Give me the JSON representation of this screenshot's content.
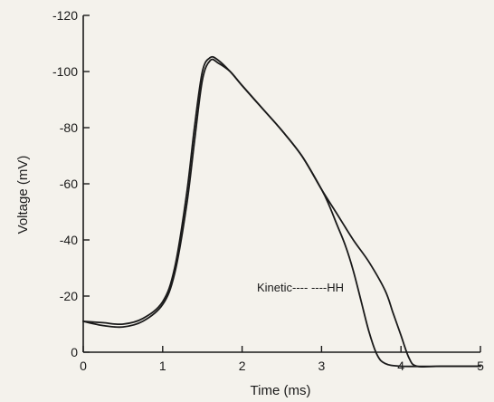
{
  "chart_data": {
    "type": "line",
    "xlabel": "Time (ms)",
    "ylabel": "Voltage (mV)",
    "xlim": [
      0,
      5
    ],
    "ylim": [
      -120,
      0
    ],
    "y_axis_inverted": true,
    "grid": false,
    "x_ticks": [
      0,
      1,
      2,
      3,
      4,
      5
    ],
    "x_tick_labels": [
      "0",
      "1",
      "2",
      "3",
      "4",
      "5"
    ],
    "y_ticks": [
      0,
      -20,
      -40,
      -60,
      -80,
      -100,
      -120
    ],
    "y_tick_labels": [
      "0",
      "-20",
      "-40",
      "-60",
      "-80",
      "-100",
      "-120"
    ],
    "series": [
      {
        "name": "Kinetic",
        "x": [
          0,
          0.25,
          0.5,
          0.75,
          1.0,
          1.15,
          1.3,
          1.4,
          1.5,
          1.6,
          1.7,
          1.85,
          2.0,
          2.25,
          2.5,
          2.75,
          3.0,
          3.1,
          3.2,
          3.3,
          3.4,
          3.5,
          3.6,
          3.7,
          3.8,
          4.0,
          4.5,
          5.0
        ],
        "y": [
          -11,
          -9.5,
          -9,
          -11,
          -17,
          -28,
          -52,
          -75,
          -97,
          -104,
          -103,
          -100,
          -95,
          -87,
          -79,
          -70,
          -58,
          -52,
          -45,
          -38,
          -29,
          -18,
          -7,
          1,
          4,
          5,
          5,
          5
        ]
      },
      {
        "name": "HH",
        "x": [
          0,
          0.25,
          0.5,
          0.75,
          1.0,
          1.15,
          1.3,
          1.4,
          1.5,
          1.6,
          1.7,
          1.85,
          2.0,
          2.25,
          2.5,
          2.75,
          3.0,
          3.2,
          3.4,
          3.6,
          3.8,
          3.9,
          4.0,
          4.1,
          4.2,
          4.5,
          5.0
        ],
        "y": [
          -11,
          -10.5,
          -10,
          -12,
          -18,
          -30,
          -56,
          -80,
          -100,
          -105,
          -104,
          -100,
          -95,
          -87,
          -79,
          -70,
          -58,
          -49,
          -40,
          -32,
          -22,
          -14,
          -6,
          2,
          5,
          5,
          5
        ]
      }
    ],
    "annotation": "Kinetic---- ----HH"
  }
}
